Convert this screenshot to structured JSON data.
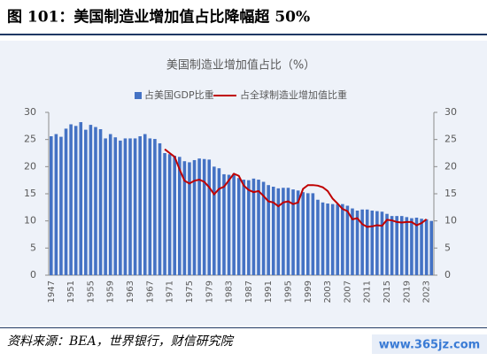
{
  "header": {
    "title": "图 101：美国制造业增加值占比降幅超 50%"
  },
  "chart_data": {
    "type": "bar",
    "title": "美国制造业增加值占比（%）",
    "categories": [
      "1947",
      null,
      null,
      null,
      "1951",
      null,
      null,
      null,
      "1955",
      null,
      null,
      null,
      "1959",
      null,
      null,
      null,
      "1963",
      null,
      null,
      null,
      "1967",
      null,
      null,
      null,
      "1971",
      null,
      null,
      null,
      "1975",
      null,
      null,
      null,
      "1979",
      null,
      null,
      null,
      "1983",
      null,
      null,
      null,
      "1987",
      null,
      null,
      null,
      "1991",
      null,
      null,
      null,
      "1995",
      null,
      null,
      null,
      "1999",
      null,
      null,
      null,
      "2003",
      null,
      null,
      null,
      "2007",
      null,
      null,
      null,
      "2011",
      null,
      null,
      null,
      "2015",
      null,
      null,
      null,
      "2019",
      null,
      null,
      null,
      "2023",
      null
    ],
    "series": [
      {
        "name": "占美国GDP比重",
        "type": "bar",
        "color": "#4472c4",
        "values": [
          25.6,
          26,
          25.5,
          27,
          27.8,
          27.5,
          28.2,
          26.8,
          27.7,
          27.3,
          26.9,
          25.2,
          26,
          25.4,
          24.8,
          25.2,
          25.2,
          25.2,
          25.6,
          26,
          25.2,
          25.1,
          24.3,
          22.5,
          22.3,
          22,
          21.8,
          21,
          20.8,
          21.2,
          21.5,
          21.4,
          21.3,
          20,
          19.7,
          18.6,
          18.5,
          18.7,
          17.9,
          17.6,
          17.5,
          17.8,
          17.6,
          17.2,
          16.6,
          16.3,
          16,
          16.1,
          16.1,
          15.8,
          15.6,
          15.3,
          15.1,
          15.1,
          13.9,
          13.4,
          13.2,
          13.1,
          13.1,
          13.1,
          12.8,
          12.3,
          11.9,
          12.1,
          12.1,
          11.9,
          11.8,
          11.7,
          11.3,
          10.9,
          10.9,
          10.9,
          10.7,
          10.5,
          10.6,
          10.4,
          10.3,
          10
        ]
      },
      {
        "name": "占全球制造业增加值比重",
        "type": "line",
        "color": "#c00000",
        "axis": "y2",
        "values": [
          null,
          null,
          null,
          null,
          null,
          null,
          null,
          null,
          null,
          null,
          null,
          null,
          null,
          null,
          null,
          null,
          null,
          null,
          null,
          null,
          null,
          null,
          null,
          23.2,
          22.5,
          21.8,
          19.5,
          17.4,
          16.9,
          17.4,
          17.6,
          17.2,
          16.2,
          14.9,
          15.9,
          16.3,
          17.5,
          18.7,
          18.3,
          16.5,
          15.7,
          15.3,
          15.5,
          14.6,
          13.6,
          13.4,
          12.7,
          13.4,
          13.6,
          13.1,
          13.4,
          15.9,
          16.6,
          16.6,
          16.5,
          16.2,
          15.5,
          14.1,
          13.2,
          12.2,
          11.8,
          10.3,
          10.5,
          9.4,
          8.9,
          9,
          9.2,
          9.1,
          10.2,
          10.1,
          9.8,
          9.7,
          9.8,
          9.8,
          9.2,
          9.6,
          10.3,
          null
        ]
      }
    ],
    "ylim": [
      0,
      30
    ],
    "yticks": [
      0,
      5,
      10,
      15,
      20,
      25,
      30
    ],
    "y2lim": [
      0,
      30
    ],
    "y2ticks": [
      0,
      5,
      10,
      15,
      20,
      25,
      30
    ],
    "legend": "top"
  },
  "footer": {
    "source": "资料来源：BEA，世界银行，财信研究院",
    "watermark": "www.365jz.com"
  }
}
